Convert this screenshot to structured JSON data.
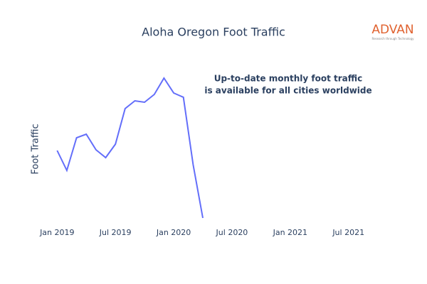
{
  "chart_data": {
    "type": "line",
    "title": "Aloha Oregon Foot Traffic",
    "y_label": "Foot Traffic",
    "annotation": [
      "Up-to-date monthly foot traffic",
      "is available for all cities worldwide"
    ],
    "logo": {
      "name": "ADVAN",
      "tagline": "Research through Technology"
    },
    "x": [
      "2019-01",
      "2019-02",
      "2019-03",
      "2019-04",
      "2019-05",
      "2019-06",
      "2019-07",
      "2019-08",
      "2019-09",
      "2019-10",
      "2019-11",
      "2019-12",
      "2020-01",
      "2020-02",
      "2020-03",
      "2020-04"
    ],
    "series": [
      {
        "color": "#636efa",
        "values": [
          98,
          70,
          116,
          121,
          99,
          88,
          107,
          157,
          168,
          166,
          177,
          200,
          179,
          173,
          78,
          3
        ]
      }
    ],
    "xlim": [
      "2018-11",
      "2021-09"
    ],
    "xticks": [
      {
        "value": "2019-01",
        "label": "Jan 2019"
      },
      {
        "value": "2019-07",
        "label": "Jul 2019"
      },
      {
        "value": "2020-01",
        "label": "Jan 2020"
      },
      {
        "value": "2020-07",
        "label": "Jul 2020"
      },
      {
        "value": "2021-01",
        "label": "Jan 2021"
      },
      {
        "value": "2021-07",
        "label": "Jul 2021"
      }
    ],
    "ylim": [
      0,
      210
    ],
    "grid": false
  }
}
